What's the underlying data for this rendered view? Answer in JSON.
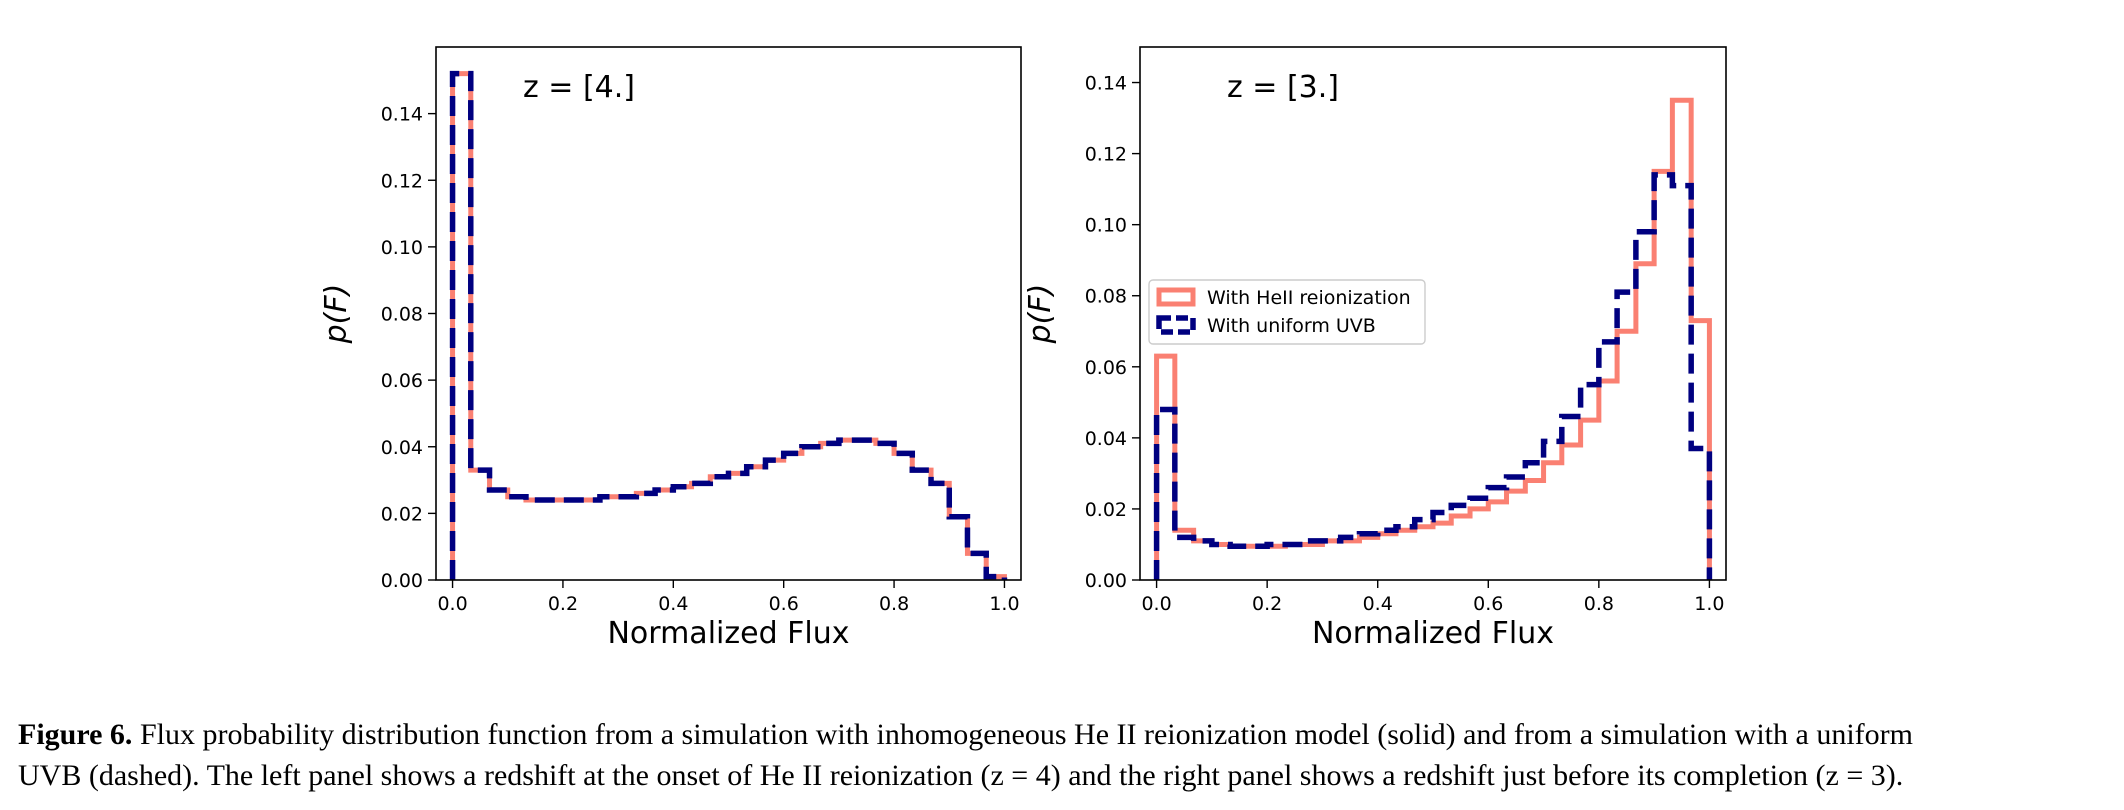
{
  "chart_data": [
    {
      "type": "step",
      "panel": "left",
      "annotation": "z = [4.]",
      "xlabel": "Normalized Flux",
      "ylabel": "p(F)",
      "xlim": [
        -0.03,
        1.03
      ],
      "ylim": [
        0.0,
        0.16
      ],
      "xticks": [
        "0.0",
        "0.2",
        "0.4",
        "0.6",
        "0.8",
        "1.0"
      ],
      "xtick_values": [
        0.0,
        0.2,
        0.4,
        0.6,
        0.8,
        1.0
      ],
      "yticks": [
        "0.00",
        "0.02",
        "0.04",
        "0.06",
        "0.08",
        "0.10",
        "0.12",
        "0.14"
      ],
      "ytick_values": [
        0.0,
        0.02,
        0.04,
        0.06,
        0.08,
        0.1,
        0.12,
        0.14
      ],
      "bin_edges": [
        0.0,
        0.033,
        0.067,
        0.1,
        0.133,
        0.167,
        0.2,
        0.233,
        0.267,
        0.3,
        0.333,
        0.367,
        0.4,
        0.433,
        0.467,
        0.5,
        0.533,
        0.567,
        0.6,
        0.633,
        0.667,
        0.7,
        0.733,
        0.767,
        0.8,
        0.833,
        0.867,
        0.9,
        0.933,
        0.967,
        1.0
      ],
      "series": [
        {
          "name": "With HeII reionization",
          "style": "solid",
          "color": "#fa8072",
          "values": [
            0.152,
            0.033,
            0.027,
            0.025,
            0.024,
            0.024,
            0.024,
            0.024,
            0.025,
            0.025,
            0.026,
            0.027,
            0.028,
            0.029,
            0.031,
            0.032,
            0.034,
            0.036,
            0.038,
            0.04,
            0.041,
            0.042,
            0.042,
            0.041,
            0.038,
            0.033,
            0.029,
            0.019,
            0.008,
            0.001
          ]
        },
        {
          "name": "With uniform UVB",
          "style": "dashed",
          "color": "#000080",
          "values": [
            0.152,
            0.033,
            0.027,
            0.025,
            0.024,
            0.024,
            0.024,
            0.024,
            0.025,
            0.025,
            0.026,
            0.027,
            0.028,
            0.029,
            0.031,
            0.032,
            0.034,
            0.036,
            0.038,
            0.04,
            0.041,
            0.042,
            0.042,
            0.041,
            0.038,
            0.033,
            0.029,
            0.019,
            0.008,
            0.001
          ]
        }
      ]
    },
    {
      "type": "step",
      "panel": "right",
      "annotation": "z = [3.]",
      "xlabel": "Normalized Flux",
      "ylabel": "p(F)",
      "xlim": [
        -0.03,
        1.03
      ],
      "ylim": [
        0.0,
        0.15
      ],
      "xticks": [
        "0.0",
        "0.2",
        "0.4",
        "0.6",
        "0.8",
        "1.0"
      ],
      "xtick_values": [
        0.0,
        0.2,
        0.4,
        0.6,
        0.8,
        1.0
      ],
      "yticks": [
        "0.00",
        "0.02",
        "0.04",
        "0.06",
        "0.08",
        "0.10",
        "0.12",
        "0.14"
      ],
      "ytick_values": [
        0.0,
        0.02,
        0.04,
        0.06,
        0.08,
        0.1,
        0.12,
        0.14
      ],
      "legend": {
        "placement": "center-left",
        "entries": [
          "With HeII reionization",
          "With uniform UVB"
        ]
      },
      "bin_edges": [
        0.0,
        0.033,
        0.067,
        0.1,
        0.133,
        0.167,
        0.2,
        0.233,
        0.267,
        0.3,
        0.333,
        0.367,
        0.4,
        0.433,
        0.467,
        0.5,
        0.533,
        0.567,
        0.6,
        0.633,
        0.667,
        0.7,
        0.733,
        0.767,
        0.8,
        0.833,
        0.867,
        0.9,
        0.933,
        0.967,
        1.0
      ],
      "series": [
        {
          "name": "With HeII reionization",
          "style": "solid",
          "color": "#fa8072",
          "values": [
            0.063,
            0.014,
            0.011,
            0.01,
            0.0095,
            0.0095,
            0.0095,
            0.01,
            0.01,
            0.011,
            0.011,
            0.012,
            0.013,
            0.014,
            0.015,
            0.016,
            0.018,
            0.02,
            0.022,
            0.025,
            0.028,
            0.033,
            0.038,
            0.045,
            0.056,
            0.07,
            0.089,
            0.115,
            0.135,
            0.073
          ]
        },
        {
          "name": "With uniform UVB",
          "style": "dashed",
          "color": "#000080",
          "values": [
            0.048,
            0.012,
            0.011,
            0.01,
            0.0095,
            0.0095,
            0.01,
            0.01,
            0.011,
            0.011,
            0.012,
            0.013,
            0.014,
            0.015,
            0.017,
            0.019,
            0.021,
            0.023,
            0.026,
            0.029,
            0.033,
            0.039,
            0.046,
            0.055,
            0.067,
            0.081,
            0.098,
            0.114,
            0.111,
            0.037
          ]
        }
      ]
    }
  ],
  "caption": {
    "label": "Figure 6.",
    "line1": "Flux probability distribution function from a simulation with inhomogeneous He II reionization model (solid) and from a simulation with a uniform",
    "line2": "UVB (dashed). The left panel shows a redshift at the onset of He II reionization (z = 4) and the right panel shows a redshift just before its completion (z = 3)."
  }
}
